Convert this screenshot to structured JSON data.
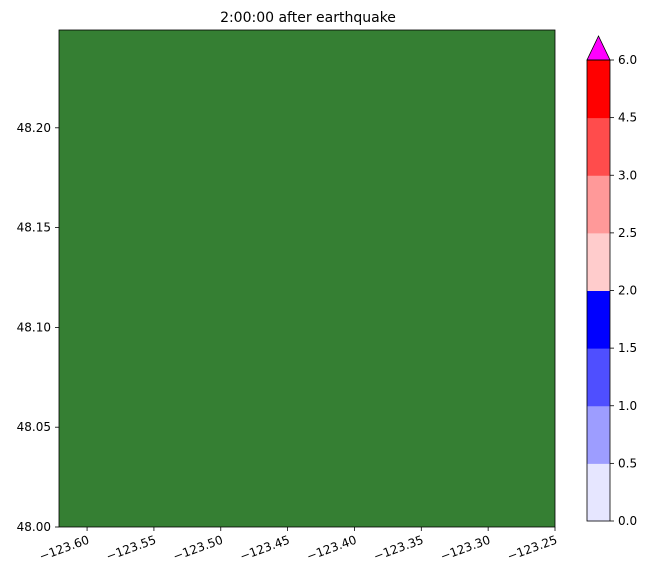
{
  "chart_data": {
    "type": "heatmap",
    "title": "2:00:00 after earthquake",
    "xlabel": "",
    "ylabel": "",
    "xlim": [
      -123.621,
      -123.25
    ],
    "ylim": [
      48.0,
      48.249
    ],
    "x_ticks": [
      -123.6,
      -123.55,
      -123.5,
      -123.45,
      -123.4,
      -123.35,
      -123.3,
      -123.25
    ],
    "x_tick_labels": [
      "−123.60",
      "−123.55",
      "−123.50",
      "−123.45",
      "−123.40",
      "−123.35",
      "−123.30",
      "−123.25"
    ],
    "y_ticks": [
      48.0,
      48.05,
      48.1,
      48.15,
      48.2
    ],
    "y_tick_labels": [
      "48.00",
      "48.05",
      "48.10",
      "48.15",
      "48.20"
    ],
    "field_color": "#357f33",
    "grid": false,
    "colorbar": {
      "levels": [
        0.0,
        0.5,
        1.0,
        1.5,
        2.0,
        2.5,
        3.0,
        4.5,
        6.0
      ],
      "level_labels": [
        "0.0",
        "0.5",
        "1.0",
        "1.5",
        "2.0",
        "2.5",
        "3.0",
        "4.5",
        "6.0"
      ],
      "colors": [
        "#e6e6ff",
        "#9d9dff",
        "#4f4fff",
        "#0000ff",
        "#ffcccc",
        "#ff9999",
        "#ff4c4c",
        "#ff0000"
      ],
      "extend_max_color": "#ff00ff"
    }
  }
}
